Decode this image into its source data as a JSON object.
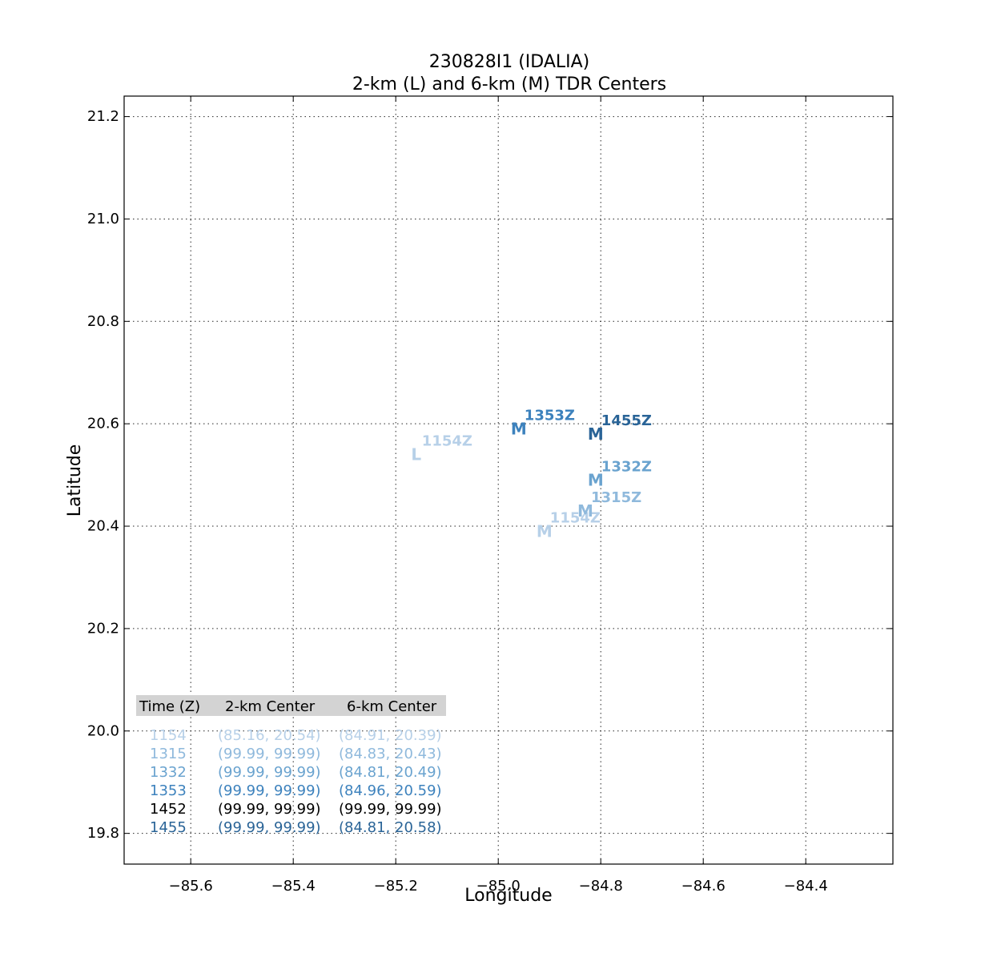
{
  "chart_data": {
    "type": "scatter",
    "title": "230828I1 (IDALIA)",
    "subtitle": "2-km (L) and 6-km (M) TDR Centers",
    "xlabel": "Longitude",
    "ylabel": "Latitude",
    "xlim": [
      -85.73,
      -84.23
    ],
    "ylim": [
      19.74,
      21.24
    ],
    "xticks": [
      -85.6,
      -85.4,
      -85.2,
      -85.0,
      -84.8,
      -84.6,
      -84.4
    ],
    "xtick_labels": [
      "−85.6",
      "−85.4",
      "−85.2",
      "−85.0",
      "−84.8",
      "−84.6",
      "−84.4"
    ],
    "yticks": [
      19.8,
      20.0,
      20.2,
      20.4,
      20.6,
      20.8,
      21.0,
      21.2
    ],
    "ytick_labels": [
      "19.8",
      "20.0",
      "20.2",
      "20.4",
      "20.6",
      "20.8",
      "21.0",
      "21.2"
    ],
    "grid": true,
    "points": [
      {
        "marker": "L",
        "label": "1154Z",
        "x": -85.16,
        "y": 20.54,
        "color": "#b7d0e8"
      },
      {
        "marker": "M",
        "label": "1154Z",
        "x": -84.91,
        "y": 20.39,
        "color": "#b7d0e8"
      },
      {
        "marker": "M",
        "label": "1315Z",
        "x": -84.83,
        "y": 20.43,
        "color": "#8fb9dc"
      },
      {
        "marker": "M",
        "label": "1332Z",
        "x": -84.81,
        "y": 20.49,
        "color": "#6aa3cf"
      },
      {
        "marker": "M",
        "label": "1353Z",
        "x": -84.96,
        "y": 20.59,
        "color": "#3d82bd"
      },
      {
        "marker": "M",
        "label": "1455Z",
        "x": -84.81,
        "y": 20.58,
        "color": "#2a6497"
      }
    ],
    "table": {
      "headers": [
        "Time (Z)",
        "2-km Center",
        "6-km Center"
      ],
      "rows": [
        {
          "time": "1154",
          "center_2km": "(85.16, 20.54)",
          "center_6km": "(84.91, 20.39)",
          "color": "#b7d0e8"
        },
        {
          "time": "1315",
          "center_2km": "(99.99, 99.99)",
          "center_6km": "(84.83, 20.43)",
          "color": "#8fb9dc"
        },
        {
          "time": "1332",
          "center_2km": "(99.99, 99.99)",
          "center_6km": "(84.81, 20.49)",
          "color": "#6aa3cf"
        },
        {
          "time": "1353",
          "center_2km": "(99.99, 99.99)",
          "center_6km": "(84.96, 20.59)",
          "color": "#3d82bd"
        },
        {
          "time": "1452",
          "center_2km": "(99.99, 99.99)",
          "center_6km": "(99.99, 99.99)",
          "color": "#000000"
        },
        {
          "time": "1455",
          "center_2km": "(99.99, 99.99)",
          "center_6km": "(84.81, 20.58)",
          "color": "#2a6497"
        }
      ]
    }
  }
}
